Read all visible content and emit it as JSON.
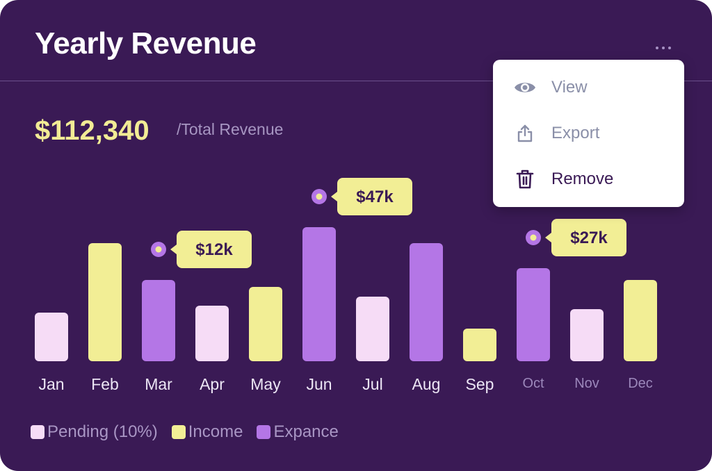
{
  "header": {
    "title": "Yearly Revenue"
  },
  "summary": {
    "total_value": "$112,340",
    "total_label": "/Total Revenue"
  },
  "menu": {
    "items": [
      {
        "label": "View",
        "icon": "eye-icon"
      },
      {
        "label": "Export",
        "icon": "export-icon"
      },
      {
        "label": "Remove",
        "icon": "trash-icon"
      }
    ]
  },
  "colors": {
    "pending": "#f6dcf6",
    "income": "#f2ee95",
    "expense": "#b476e6",
    "background": "#3a1a55"
  },
  "chart_data": {
    "type": "bar",
    "title": "Yearly Revenue",
    "categories": [
      "Jan",
      "Feb",
      "Mar",
      "Apr",
      "May",
      "Jun",
      "Jul",
      "Aug",
      "Sep",
      "Oct",
      "Nov",
      "Dec"
    ],
    "series": [
      {
        "name": "Pending (10%)",
        "color": "#f6dcf6",
        "values": [
          70,
          null,
          null,
          80,
          null,
          null,
          93,
          null,
          null,
          null,
          75,
          null
        ]
      },
      {
        "name": "Income",
        "color": "#f2ee95",
        "values": [
          null,
          170,
          null,
          null,
          107,
          null,
          null,
          null,
          47,
          null,
          null,
          117
        ]
      },
      {
        "name": "Expance",
        "color": "#b476e6",
        "values": [
          null,
          null,
          117,
          null,
          null,
          193,
          null,
          170,
          null,
          134,
          null,
          null
        ]
      }
    ],
    "annotations": [
      {
        "category": "Mar",
        "label": "$12k"
      },
      {
        "category": "Jun",
        "label": "$47k"
      },
      {
        "category": "Oct",
        "label": "$27k"
      }
    ],
    "dimmed_categories": [
      "Oct",
      "Nov",
      "Dec"
    ],
    "grid": false,
    "legend": "bottom-left"
  }
}
